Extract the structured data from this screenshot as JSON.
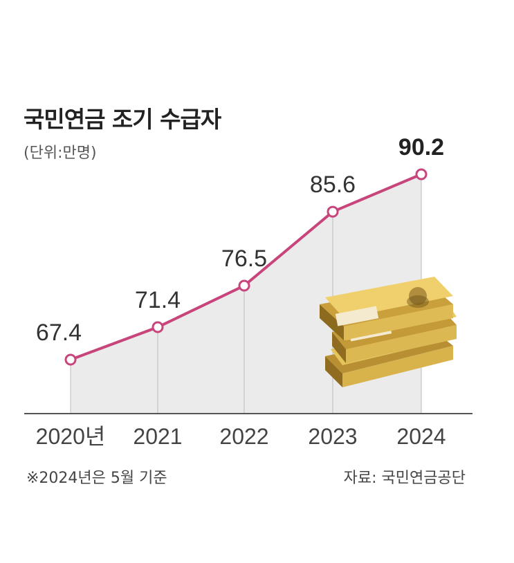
{
  "title": "국민연금 조기 수급자",
  "unit": "(단위:만명)",
  "note": "※2024년은 5월 기준",
  "source": "자료: 국민연금공단",
  "colors": {
    "line": "#c8457c",
    "area": "#ebebeb",
    "axis": "#555555"
  },
  "illustration": "stacked-50000-won-banknotes",
  "chart_data": {
    "type": "area",
    "categories": [
      "2020년",
      "2021",
      "2022",
      "2023",
      "2024"
    ],
    "values": [
      67.4,
      71.4,
      76.5,
      85.6,
      90.2
    ],
    "value_labels": [
      "67.4",
      "71.4",
      "76.5",
      "85.6",
      "90.2"
    ],
    "title": "국민연금 조기 수급자",
    "ylabel": "(단위:만명)",
    "legend": "none",
    "grid": false
  }
}
